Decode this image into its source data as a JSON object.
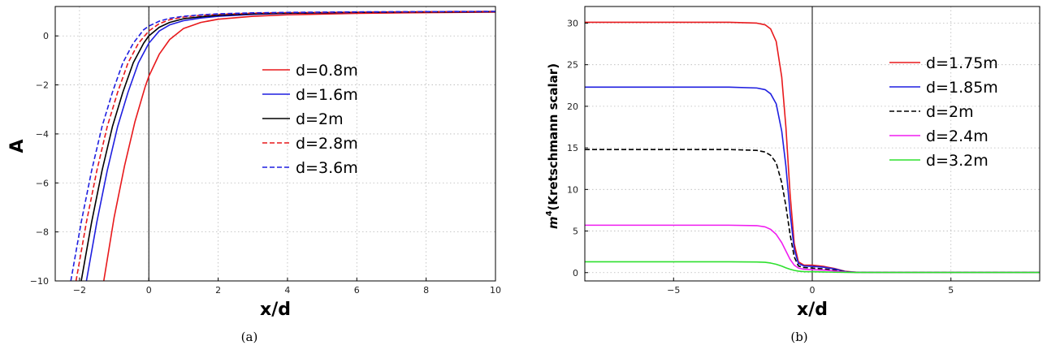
{
  "chart_data": [
    {
      "type": "line",
      "caption": "(a)",
      "xlabel": "x/d",
      "ylabel": "A",
      "xlim": [
        -2.7,
        10
      ],
      "ylim": [
        -10,
        1.2
      ],
      "xticks": [
        -2,
        0,
        2,
        4,
        6,
        8,
        10
      ],
      "yticks": [
        -10,
        -8,
        -6,
        -4,
        -2,
        0
      ],
      "grid": true,
      "vline_x": 0,
      "legend_position": "center-right",
      "colors": {
        "red": "#e8191c",
        "blue": "#1f1fe0",
        "black": "#000000"
      },
      "series": [
        {
          "name": "d=0.8m",
          "color": "#e8191c",
          "dash": "solid",
          "x": [
            -1.3,
            -1.0,
            -0.7,
            -0.4,
            -0.1,
            0.0,
            0.3,
            0.6,
            1.0,
            1.5,
            2.0,
            3.0,
            4.0,
            6.0,
            8.0,
            10.0
          ],
          "y": [
            -10.0,
            -7.4,
            -5.3,
            -3.5,
            -2.05,
            -1.65,
            -0.75,
            -0.15,
            0.3,
            0.55,
            0.68,
            0.8,
            0.86,
            0.92,
            0.95,
            0.97
          ]
        },
        {
          "name": "d=1.6m",
          "color": "#1f1fe0",
          "dash": "solid",
          "x": [
            -1.8,
            -1.5,
            -1.2,
            -0.9,
            -0.6,
            -0.3,
            0.0,
            0.3,
            0.6,
            1.0,
            1.5,
            2.0,
            3.0,
            4.0,
            6.0,
            8.0,
            10.0
          ],
          "y": [
            -10.0,
            -7.6,
            -5.5,
            -3.7,
            -2.3,
            -1.1,
            -0.3,
            0.2,
            0.45,
            0.62,
            0.73,
            0.8,
            0.88,
            0.92,
            0.96,
            0.98,
            0.99
          ]
        },
        {
          "name": "d=2m",
          "color": "#000000",
          "dash": "solid",
          "x": [
            -1.95,
            -1.65,
            -1.35,
            -1.05,
            -0.75,
            -0.45,
            -0.15,
            0.0,
            0.3,
            0.6,
            1.0,
            1.5,
            2.0,
            3.0,
            4.0,
            6.0,
            8.0,
            10.0
          ],
          "y": [
            -10.0,
            -7.6,
            -5.5,
            -3.7,
            -2.3,
            -1.1,
            -0.3,
            0.0,
            0.35,
            0.55,
            0.7,
            0.78,
            0.84,
            0.9,
            0.93,
            0.96,
            0.98,
            0.99
          ]
        },
        {
          "name": "d=2.8m",
          "color": "#e8191c",
          "dash": "dashed",
          "x": [
            -2.1,
            -1.8,
            -1.5,
            -1.2,
            -0.9,
            -0.6,
            -0.3,
            0.0,
            0.3,
            0.6,
            1.0,
            1.5,
            2.0,
            3.0,
            4.0,
            6.0,
            8.0,
            10.0
          ],
          "y": [
            -10.0,
            -7.6,
            -5.5,
            -3.7,
            -2.3,
            -1.1,
            -0.3,
            0.2,
            0.5,
            0.66,
            0.77,
            0.84,
            0.88,
            0.93,
            0.95,
            0.97,
            0.99,
            1.0
          ]
        },
        {
          "name": "d=3.6m",
          "color": "#1f1fe0",
          "dash": "dashed",
          "x": [
            -2.25,
            -1.95,
            -1.65,
            -1.35,
            -1.05,
            -0.75,
            -0.45,
            -0.15,
            0.0,
            0.3,
            0.6,
            1.0,
            1.5,
            2.0,
            3.0,
            4.0,
            6.0,
            8.0,
            10.0
          ],
          "y": [
            -10.0,
            -7.6,
            -5.5,
            -3.7,
            -2.3,
            -1.1,
            -0.3,
            0.25,
            0.4,
            0.6,
            0.72,
            0.8,
            0.86,
            0.9,
            0.94,
            0.96,
            0.98,
            0.99,
            1.0
          ]
        }
      ]
    },
    {
      "type": "line",
      "caption": "(b)",
      "xlabel": "x/d",
      "ylabel_sup": "4",
      "ylabel_main": "m",
      "ylabel_rest": "(Kretschmann scalar)",
      "xlim": [
        -8.2,
        8.2
      ],
      "ylim": [
        -1,
        32
      ],
      "xticks": [
        -5,
        0,
        5
      ],
      "yticks": [
        0,
        5,
        10,
        15,
        20,
        25,
        30
      ],
      "grid": true,
      "vline_x": 0,
      "legend_position": "center-right",
      "colors": {
        "red": "#e8191c",
        "blue": "#1f1fe0",
        "black": "#000000",
        "magenta": "#f01ef0",
        "green": "#2ee02e"
      },
      "series": [
        {
          "name": "d=1.75m",
          "color": "#e8191c",
          "dash": "solid",
          "x": [
            -8.2,
            -3.0,
            -2.0,
            -1.7,
            -1.5,
            -1.3,
            -1.1,
            -0.95,
            -0.8,
            -0.65,
            -0.5,
            -0.3,
            0.0,
            0.4,
            0.8,
            1.2,
            1.6,
            2.5,
            8.2
          ],
          "y": [
            30.1,
            30.1,
            30.0,
            29.8,
            29.3,
            27.8,
            23.5,
            17.5,
            9.5,
            3.5,
            1.3,
            0.9,
            0.9,
            0.75,
            0.5,
            0.15,
            0.05,
            0.02,
            0.02
          ]
        },
        {
          "name": "d=1.85m",
          "color": "#1f1fe0",
          "dash": "solid",
          "x": [
            -8.2,
            -3.0,
            -2.0,
            -1.7,
            -1.5,
            -1.3,
            -1.1,
            -0.95,
            -0.8,
            -0.65,
            -0.5,
            -0.3,
            0.0,
            0.4,
            0.8,
            1.2,
            1.6,
            2.5,
            8.2
          ],
          "y": [
            22.3,
            22.3,
            22.2,
            22.0,
            21.5,
            20.3,
            17.0,
            12.8,
            7.2,
            2.8,
            1.1,
            0.8,
            0.75,
            0.65,
            0.45,
            0.12,
            0.04,
            0.02,
            0.02
          ]
        },
        {
          "name": "d=2m",
          "color": "#000000",
          "dash": "dashed",
          "x": [
            -8.2,
            -3.0,
            -2.0,
            -1.7,
            -1.5,
            -1.3,
            -1.1,
            -0.95,
            -0.8,
            -0.65,
            -0.5,
            -0.3,
            0.0,
            0.4,
            0.8,
            1.2,
            1.6,
            2.5,
            8.2
          ],
          "y": [
            14.8,
            14.8,
            14.7,
            14.5,
            14.1,
            13.2,
            10.8,
            8.0,
            4.6,
            1.9,
            0.8,
            0.6,
            0.55,
            0.45,
            0.3,
            0.1,
            0.03,
            0.02,
            0.02
          ]
        },
        {
          "name": "d=2.4m",
          "color": "#f01ef0",
          "dash": "solid",
          "x": [
            -8.2,
            -3.0,
            -2.0,
            -1.7,
            -1.5,
            -1.3,
            -1.1,
            -0.95,
            -0.8,
            -0.65,
            -0.5,
            -0.3,
            0.0,
            0.4,
            0.8,
            1.2,
            1.6,
            2.5,
            8.2
          ],
          "y": [
            5.7,
            5.7,
            5.65,
            5.5,
            5.2,
            4.6,
            3.6,
            2.6,
            1.6,
            0.9,
            0.55,
            0.4,
            0.35,
            0.3,
            0.2,
            0.07,
            0.03,
            0.02,
            0.02
          ]
        },
        {
          "name": "d=3.2m",
          "color": "#2ee02e",
          "dash": "solid",
          "x": [
            -8.2,
            -3.0,
            -2.0,
            -1.7,
            -1.5,
            -1.3,
            -1.1,
            -0.95,
            -0.8,
            -0.65,
            -0.5,
            -0.3,
            0.0,
            0.4,
            0.8,
            1.2,
            1.6,
            2.5,
            8.2
          ],
          "y": [
            1.3,
            1.3,
            1.28,
            1.24,
            1.15,
            1.0,
            0.78,
            0.58,
            0.4,
            0.27,
            0.18,
            0.12,
            0.1,
            0.08,
            0.05,
            0.03,
            0.02,
            0.02,
            0.02
          ]
        }
      ]
    }
  ]
}
